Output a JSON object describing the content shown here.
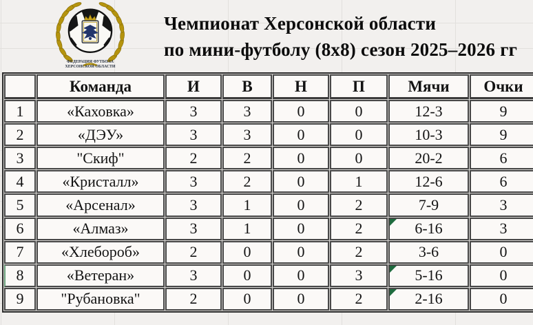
{
  "title": {
    "line1": "Чемпионат Херсонской области",
    "line2": "по мини-футболу (8х8) сезон 2025–2026 гг"
  },
  "logo": {
    "caption_line1": "ФЕДЕРАЦИЯ ФУТБОЛА",
    "caption_line2": "ХЕРСОНСКОЙ ОБЛАСТИ"
  },
  "table": {
    "headers": {
      "rank": "",
      "team": "Команда",
      "played": "И",
      "wins": "В",
      "draws": "Н",
      "losses": "П",
      "goals": "Мячи",
      "points": "Очки"
    },
    "rows": [
      {
        "rank": "1",
        "team": "«Каховка»",
        "played": "3",
        "wins": "3",
        "draws": "0",
        "losses": "0",
        "goals": "12-3",
        "points": "9",
        "goals_flag": false,
        "selected": false
      },
      {
        "rank": "2",
        "team": "«ДЭУ»",
        "played": "3",
        "wins": "3",
        "draws": "0",
        "losses": "0",
        "goals": "10-3",
        "points": "9",
        "goals_flag": false,
        "selected": false
      },
      {
        "rank": "3",
        "team": "\"Скиф\"",
        "played": "2",
        "wins": "2",
        "draws": "0",
        "losses": "0",
        "goals": "20-2",
        "points": "6",
        "goals_flag": false,
        "selected": false
      },
      {
        "rank": "4",
        "team": "«Кристалл»",
        "played": "3",
        "wins": "2",
        "draws": "0",
        "losses": "1",
        "goals": "12-6",
        "points": "6",
        "goals_flag": false,
        "selected": false
      },
      {
        "rank": "5",
        "team": "«Арсенал»",
        "played": "3",
        "wins": "1",
        "draws": "0",
        "losses": "2",
        "goals": "7-9",
        "points": "3",
        "goals_flag": false,
        "selected": false
      },
      {
        "rank": "6",
        "team": "«Алмаз»",
        "played": "3",
        "wins": "1",
        "draws": "0",
        "losses": "2",
        "goals": "6-16",
        "points": "3",
        "goals_flag": true,
        "selected": false
      },
      {
        "rank": "7",
        "team": "«Хлебороб»",
        "played": "2",
        "wins": "0",
        "draws": "0",
        "losses": "2",
        "goals": "3-6",
        "points": "0",
        "goals_flag": false,
        "selected": false
      },
      {
        "rank": "8",
        "team": "«Ветеран»",
        "played": "3",
        "wins": "0",
        "draws": "0",
        "losses": "3",
        "goals": "5-16",
        "points": "0",
        "goals_flag": true,
        "selected": true
      },
      {
        "rank": "9",
        "team": "\"Рубановка\"",
        "played": "2",
        "wins": "0",
        "draws": "0",
        "losses": "2",
        "goals": "2-16",
        "points": "0",
        "goals_flag": true,
        "selected": false
      }
    ]
  },
  "colors": {
    "triangle_green": "#1e6b3e",
    "wreath_gold": "#b5940e",
    "crest_navy": "#22356b",
    "table_border": "#474747",
    "page_bg": "#f2f0ee"
  }
}
